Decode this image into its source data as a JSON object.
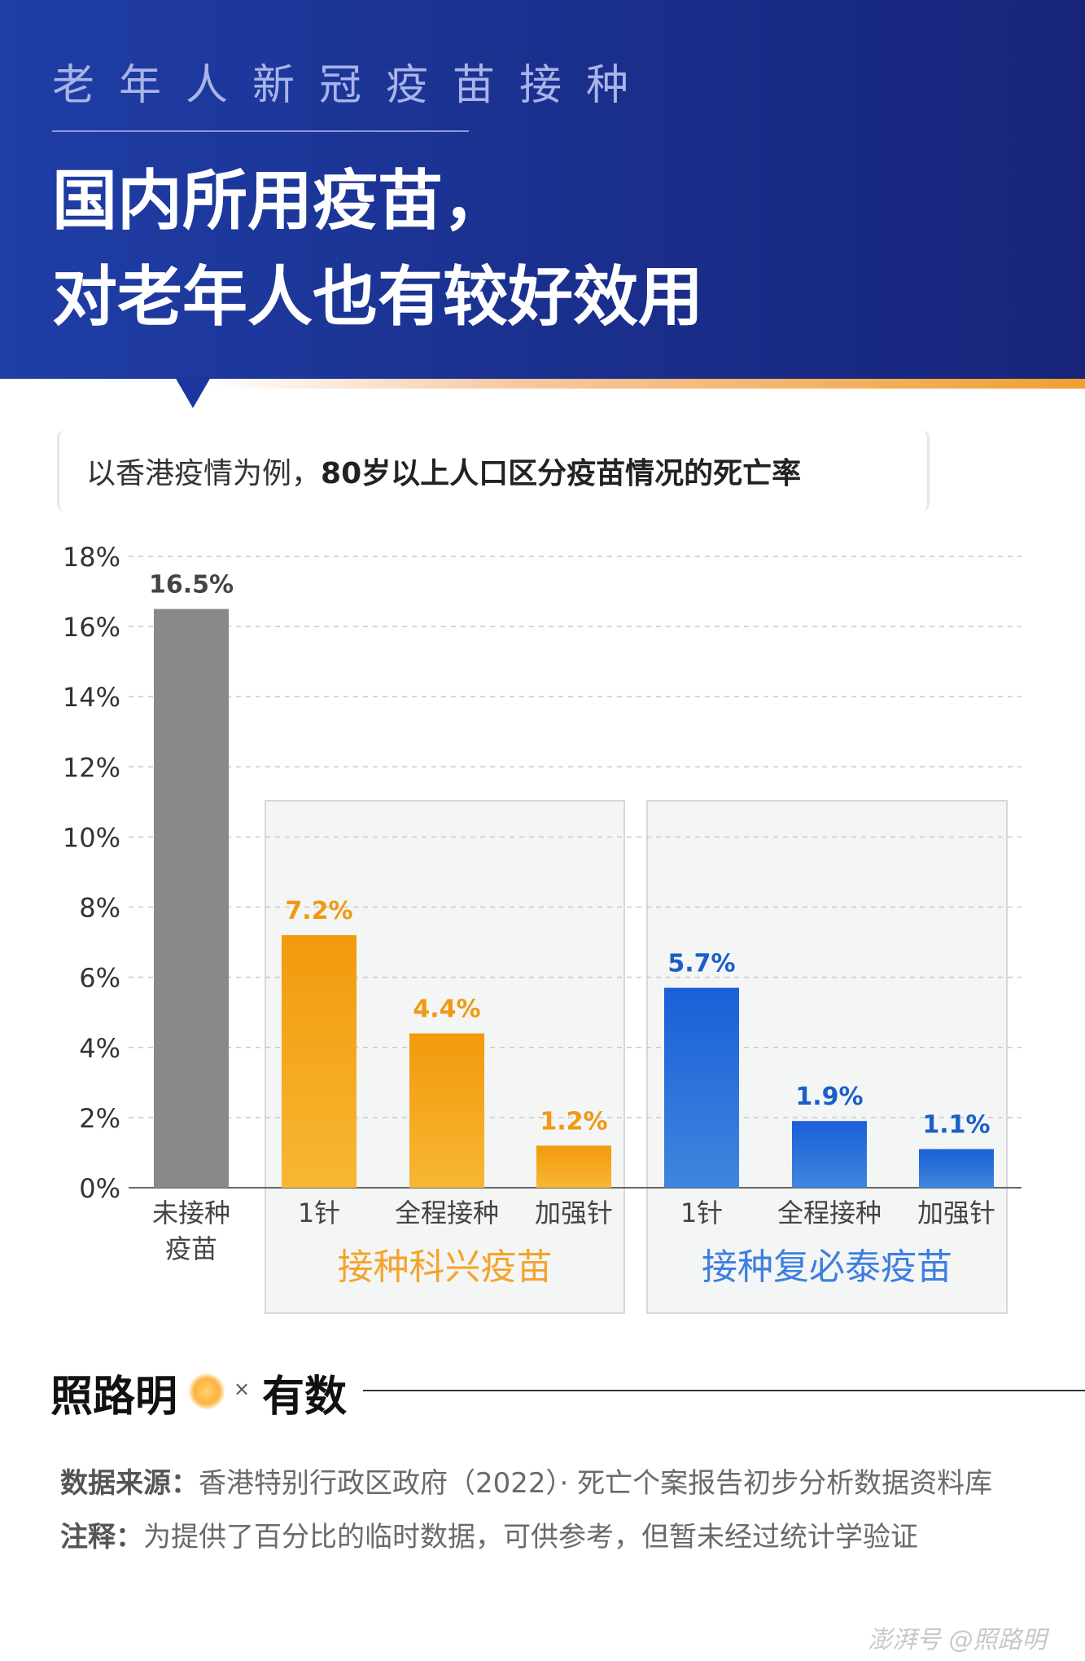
{
  "header": {
    "kicker": "老年人新冠疫苗接种",
    "title_line1": "国内所用疫苗，",
    "title_line2": "对老年人也有较好效用",
    "accent": "#1f3ea6"
  },
  "subtitle": {
    "prefix": "以香港疫情为例，",
    "bold": "80岁以上人口区分疫苗情况的死亡率"
  },
  "chart_data": {
    "type": "bar",
    "ylim": [
      0,
      18
    ],
    "yticks": [
      "0%",
      "2%",
      "4%",
      "6%",
      "8%",
      "10%",
      "12%",
      "14%",
      "16%",
      "18%"
    ],
    "grid": true,
    "bars": [
      {
        "label": "未接种\n疫苗",
        "value": 16.5,
        "value_label": "16.5%",
        "color": "#888888",
        "group": ""
      },
      {
        "label": "1针",
        "value": 7.2,
        "value_label": "7.2%",
        "color": "#f29a0c",
        "group": "kexing"
      },
      {
        "label": "全程接种",
        "value": 4.4,
        "value_label": "4.4%",
        "color": "#f29a0c",
        "group": "kexing"
      },
      {
        "label": "加强针",
        "value": 1.2,
        "value_label": "1.2%",
        "color": "#f29a0c",
        "group": "kexing"
      },
      {
        "label": "1针",
        "value": 5.7,
        "value_label": "5.7%",
        "color": "#1f5fd6",
        "group": "fubitai"
      },
      {
        "label": "全程接种",
        "value": 1.9,
        "value_label": "1.9%",
        "color": "#1f5fd6",
        "group": "fubitai"
      },
      {
        "label": "加强针",
        "value": 1.1,
        "value_label": "1.1%",
        "color": "#1f5fd6",
        "group": "fubitai"
      }
    ],
    "groups": [
      {
        "id": "kexing",
        "name": "接种科兴疫苗",
        "color": "#f4a42c"
      },
      {
        "id": "fubitai",
        "name": "接种复必泰疫苗",
        "color": "#3d7fe0"
      }
    ]
  },
  "footer": {
    "brand1": "照路明",
    "separator": "×",
    "brand2": "有数",
    "source_label": "数据来源：",
    "source_text": "香港特别行政区政府（2022）· 死亡个案报告初步分析数据资料库",
    "note_label": "注释：",
    "note_text": "为提供了百分比的临时数据，可供参考，但暂未经过统计学验证",
    "watermark": "澎湃号 @照路明"
  }
}
